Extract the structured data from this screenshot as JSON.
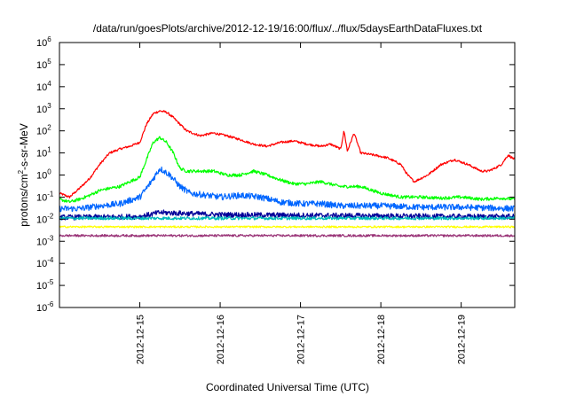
{
  "chart_data": {
    "type": "line",
    "title": "/data/run/goesPlots/archive/2012-12-19/16:00/flux/../flux/5daysEarthDataFluxes.txt",
    "xlabel": "Coordinated Universal Time (UTC)",
    "ylabel": "protons/cm²-s-sr-MeV",
    "ylabel_parts": {
      "a": "protons/cm",
      "sup": "2",
      "b": "-s-sr-MeV"
    },
    "y_scale": "log",
    "ylim": [
      1e-06,
      1000000.0
    ],
    "y_ticks": [
      {
        "value": 1e-06,
        "base": "10",
        "exp": "-6"
      },
      {
        "value": 1e-05,
        "base": "10",
        "exp": "-5"
      },
      {
        "value": 0.0001,
        "base": "10",
        "exp": "-4"
      },
      {
        "value": 0.001,
        "base": "10",
        "exp": "-3"
      },
      {
        "value": 0.01,
        "base": "10",
        "exp": "-2"
      },
      {
        "value": 0.1,
        "base": "10",
        "exp": "-1"
      },
      {
        "value": 1,
        "base": "10",
        "exp": "0"
      },
      {
        "value": 10.0,
        "base": "10",
        "exp": "1"
      },
      {
        "value": 100.0,
        "base": "10",
        "exp": "2"
      },
      {
        "value": 1000.0,
        "base": "10",
        "exp": "3"
      },
      {
        "value": 10000.0,
        "base": "10",
        "exp": "4"
      },
      {
        "value": 100000.0,
        "base": "10",
        "exp": "5"
      },
      {
        "value": 1000000.0,
        "base": "10",
        "exp": "6"
      }
    ],
    "xlim": [
      "2012-12-14T00:00",
      "2012-12-19T16:00"
    ],
    "x_ticks": [
      {
        "value": "2012-12-15T00:00",
        "label": "2012-12-15"
      },
      {
        "value": "2012-12-16T00:00",
        "label": "2012-12-16"
      },
      {
        "value": "2012-12-17T00:00",
        "label": "2012-12-17"
      },
      {
        "value": "2012-12-18T00:00",
        "label": "2012-12-18"
      },
      {
        "value": "2012-12-19T00:00",
        "label": "2012-12-19"
      }
    ],
    "grid": false,
    "legend": "none",
    "series": [
      {
        "color": "#ff0000",
        "noise_dex": 0.05,
        "x": [
          "2012-12-14T00:00",
          "2012-12-14T03:00",
          "2012-12-14T06:00",
          "2012-12-14T09:00",
          "2012-12-14T12:00",
          "2012-12-14T15:00",
          "2012-12-14T18:00",
          "2012-12-14T21:00",
          "2012-12-15T00:00",
          "2012-12-15T02:00",
          "2012-12-15T04:00",
          "2012-12-15T06:00",
          "2012-12-15T08:00",
          "2012-12-15T10:00",
          "2012-12-15T12:00",
          "2012-12-15T14:00",
          "2012-12-15T18:00",
          "2012-12-15T22:00",
          "2012-12-16T02:00",
          "2012-12-16T06:00",
          "2012-12-16T10:00",
          "2012-12-16T14:00",
          "2012-12-16T18:00",
          "2012-12-16T22:00",
          "2012-12-17T02:00",
          "2012-12-17T06:00",
          "2012-12-17T09:00",
          "2012-12-17T12:00",
          "2012-12-17T13:00",
          "2012-12-17T14:00",
          "2012-12-17T16:00",
          "2012-12-17T18:00",
          "2012-12-17T22:00",
          "2012-12-18T02:00",
          "2012-12-18T06:00",
          "2012-12-18T08:00",
          "2012-12-18T10:00",
          "2012-12-18T14:00",
          "2012-12-18T18:00",
          "2012-12-18T22:00",
          "2012-12-19T02:00",
          "2012-12-19T06:00",
          "2012-12-19T08:00",
          "2012-12-19T10:00",
          "2012-12-19T12:00",
          "2012-12-19T14:00",
          "2012-12-19T16:00"
        ],
        "y": [
          0.15,
          0.1,
          0.25,
          0.7,
          3,
          10,
          15,
          20,
          30,
          200,
          600,
          800,
          700,
          400,
          200,
          100,
          60,
          80,
          60,
          40,
          25,
          20,
          30,
          35,
          25,
          20,
          25,
          15,
          100,
          12,
          80,
          10,
          8,
          6,
          3,
          1,
          0.5,
          1,
          3,
          5,
          3,
          1.5,
          1.5,
          2,
          3,
          8,
          5
        ]
      },
      {
        "color": "#00ff00",
        "noise_dex": 0.07,
        "x": [
          "2012-12-14T00:00",
          "2012-12-14T03:00",
          "2012-12-14T06:00",
          "2012-12-14T09:00",
          "2012-12-14T12:00",
          "2012-12-14T15:00",
          "2012-12-14T18:00",
          "2012-12-14T21:00",
          "2012-12-15T00:00",
          "2012-12-15T02:00",
          "2012-12-15T04:00",
          "2012-12-15T06:00",
          "2012-12-15T08:00",
          "2012-12-15T10:00",
          "2012-12-15T12:00",
          "2012-12-15T14:00",
          "2012-12-15T18:00",
          "2012-12-15T22:00",
          "2012-12-16T02:00",
          "2012-12-16T06:00",
          "2012-12-16T10:00",
          "2012-12-16T14:00",
          "2012-12-16T18:00",
          "2012-12-16T22:00",
          "2012-12-17T02:00",
          "2012-12-17T06:00",
          "2012-12-17T12:00",
          "2012-12-17T18:00",
          "2012-12-18T00:00",
          "2012-12-18T06:00",
          "2012-12-18T12:00",
          "2012-12-18T18:00",
          "2012-12-19T00:00",
          "2012-12-19T06:00",
          "2012-12-19T12:00",
          "2012-12-19T16:00"
        ],
        "y": [
          0.08,
          0.06,
          0.08,
          0.12,
          0.2,
          0.25,
          0.3,
          0.5,
          0.8,
          5,
          30,
          50,
          30,
          10,
          2,
          1.5,
          1.5,
          1.5,
          1,
          1,
          1.5,
          1,
          0.6,
          0.4,
          0.4,
          0.5,
          0.3,
          0.3,
          0.15,
          0.1,
          0.1,
          0.09,
          0.1,
          0.08,
          0.09,
          0.08
        ]
      },
      {
        "color": "#0066ff",
        "noise_dex": 0.14,
        "x": [
          "2012-12-14T00:00",
          "2012-12-14T06:00",
          "2012-12-14T12:00",
          "2012-12-14T18:00",
          "2012-12-15T00:00",
          "2012-12-15T03:00",
          "2012-12-15T06:00",
          "2012-12-15T09:00",
          "2012-12-15T12:00",
          "2012-12-15T15:00",
          "2012-12-15T20:00",
          "2012-12-16T00:00",
          "2012-12-16T06:00",
          "2012-12-16T12:00",
          "2012-12-16T18:00",
          "2012-12-17T00:00",
          "2012-12-17T06:00",
          "2012-12-17T12:00",
          "2012-12-18T00:00",
          "2012-12-18T12:00",
          "2012-12-19T00:00",
          "2012-12-19T16:00"
        ],
        "y": [
          0.03,
          0.03,
          0.04,
          0.05,
          0.1,
          0.4,
          2,
          1,
          0.3,
          0.15,
          0.12,
          0.1,
          0.12,
          0.1,
          0.06,
          0.05,
          0.05,
          0.04,
          0.04,
          0.035,
          0.035,
          0.03
        ]
      },
      {
        "color": "#000099",
        "noise_dex": 0.12,
        "x": [
          "2012-12-14T00:00",
          "2012-12-15T00:00",
          "2012-12-15T06:00",
          "2012-12-16T00:00",
          "2012-12-17T00:00",
          "2012-12-18T00:00",
          "2012-12-19T00:00",
          "2012-12-19T16:00"
        ],
        "y": [
          0.012,
          0.013,
          0.02,
          0.016,
          0.015,
          0.014,
          0.013,
          0.013
        ]
      },
      {
        "color": "#00bbbb",
        "noise_dex": 0.07,
        "x": [
          "2012-12-14T00:00",
          "2012-12-19T16:00"
        ],
        "y": [
          0.011,
          0.011
        ]
      },
      {
        "color": "#ffff00",
        "noise_dex": 0.04,
        "x": [
          "2012-12-14T00:00",
          "2012-12-19T16:00"
        ],
        "y": [
          0.0045,
          0.0045
        ]
      },
      {
        "color": "#993377",
        "noise_dex": 0.05,
        "x": [
          "2012-12-14T00:00",
          "2012-12-19T16:00"
        ],
        "y": [
          0.0018,
          0.0018
        ]
      }
    ]
  }
}
